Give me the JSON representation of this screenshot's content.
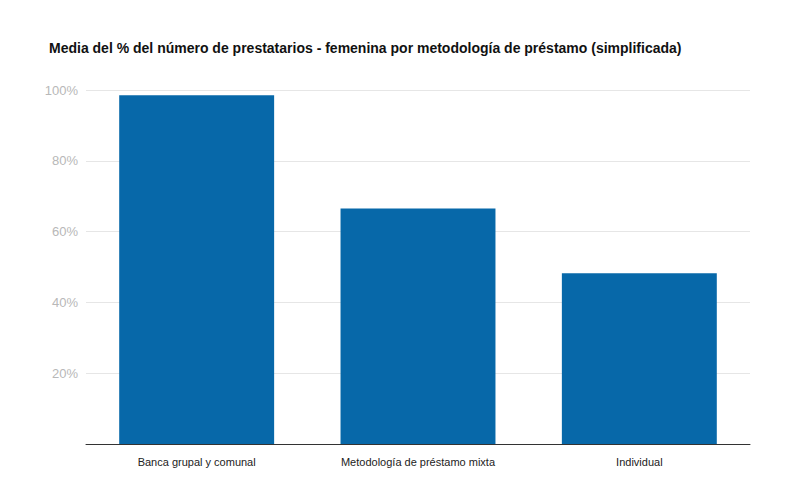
{
  "chart_data": {
    "type": "bar",
    "title": "Media del % del número de prestatarios - femenina por metodología de préstamo (simplificada)",
    "categories": [
      "Banca grupal y comunal",
      "Metodología de préstamo mixta",
      "Individual"
    ],
    "values": [
      98.5,
      66.5,
      48.2
    ],
    "color": "#0768a9",
    "ylim": [
      0,
      100
    ],
    "yticks": [
      {
        "value": 20,
        "label": "20%"
      },
      {
        "value": 40,
        "label": "40%"
      },
      {
        "value": 60,
        "label": "60%"
      },
      {
        "value": 80,
        "label": "80%"
      },
      {
        "value": 100,
        "label": "100%"
      }
    ],
    "grid": true
  }
}
